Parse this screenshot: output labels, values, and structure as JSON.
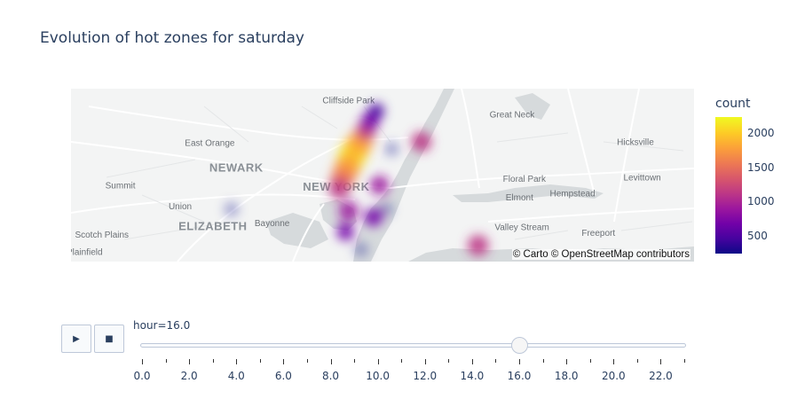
{
  "title": "Evolution of hot zones for saturday",
  "map": {
    "attribution": "© Carto © OpenStreetMap contributors",
    "places": [
      {
        "name": "Cliffside Park",
        "kind": "small",
        "lon": -73.99,
        "lat": 40.822
      },
      {
        "name": "Great Neck",
        "kind": "small",
        "lon": -73.725,
        "lat": 40.804
      },
      {
        "name": "East Orange",
        "kind": "small",
        "lon": -74.215,
        "lat": 40.769
      },
      {
        "name": "Hicksville",
        "kind": "small",
        "lon": -73.525,
        "lat": 40.77
      },
      {
        "name": "NEWARK",
        "kind": "city",
        "lon": -74.172,
        "lat": 40.737
      },
      {
        "name": "Summit",
        "kind": "small",
        "lon": -74.36,
        "lat": 40.716
      },
      {
        "name": "NEW YORK",
        "kind": "city",
        "lon": -74.01,
        "lat": 40.713
      },
      {
        "name": "Floral Park",
        "kind": "small",
        "lon": -73.705,
        "lat": 40.724
      },
      {
        "name": "Levittown",
        "kind": "small",
        "lon": -73.514,
        "lat": 40.726
      },
      {
        "name": "Elmont",
        "kind": "small",
        "lon": -73.713,
        "lat": 40.701
      },
      {
        "name": "Hempstead",
        "kind": "small",
        "lon": -73.627,
        "lat": 40.706
      },
      {
        "name": "Union",
        "kind": "small",
        "lon": -74.263,
        "lat": 40.69
      },
      {
        "name": "ELIZABETH",
        "kind": "city",
        "lon": -74.21,
        "lat": 40.664
      },
      {
        "name": "Bayonne",
        "kind": "small",
        "lon": -74.114,
        "lat": 40.669
      },
      {
        "name": "Valley Stream",
        "kind": "small",
        "lon": -73.709,
        "lat": 40.664
      },
      {
        "name": "Freeport",
        "kind": "small",
        "lon": -73.585,
        "lat": 40.657
      },
      {
        "name": "Scotch Plains",
        "kind": "small",
        "lon": -74.39,
        "lat": 40.655
      },
      {
        "name": "Plainfield",
        "kind": "small",
        "lon": -74.418,
        "lat": 40.633
      }
    ]
  },
  "colorbar": {
    "title": "count",
    "ticks": [
      500,
      1000,
      1500,
      2000
    ],
    "range": [
      250,
      2250
    ],
    "colors": [
      "#0d0887",
      "#46039f",
      "#7201a8",
      "#9c179e",
      "#bd3786",
      "#d8576b",
      "#ed7953",
      "#fb9f3a",
      "#fdca26",
      "#f0f921"
    ]
  },
  "animation": {
    "play_icon": "play-icon",
    "stop_icon": "stop-icon",
    "current_label": "hour=16.0",
    "current_value": 16,
    "min": 0,
    "max": 23,
    "major_ticks": [
      "0.0",
      "2.0",
      "4.0",
      "6.0",
      "8.0",
      "10.0",
      "12.0",
      "14.0",
      "16.0",
      "18.0",
      "20.0",
      "22.0"
    ]
  },
  "chart_data": {
    "type": "heatmap",
    "title": "Evolution of hot zones for saturday",
    "frame": "hour=16.0",
    "color_scale": "Plasma",
    "color_range": [
      250,
      2250
    ],
    "points": [
      {
        "lon": -73.985,
        "lat": 40.755,
        "count": 2200
      },
      {
        "lon": -73.978,
        "lat": 40.765,
        "count": 2000
      },
      {
        "lon": -73.992,
        "lat": 40.742,
        "count": 1900
      },
      {
        "lon": -73.97,
        "lat": 40.775,
        "count": 1700
      },
      {
        "lon": -74.0,
        "lat": 40.728,
        "count": 1600
      },
      {
        "lon": -74.005,
        "lat": 40.716,
        "count": 1200
      },
      {
        "lon": -73.962,
        "lat": 40.788,
        "count": 1100
      },
      {
        "lon": -73.955,
        "lat": 40.8,
        "count": 800
      },
      {
        "lon": -73.945,
        "lat": 40.812,
        "count": 500
      },
      {
        "lon": -73.94,
        "lat": 40.72,
        "count": 900
      },
      {
        "lon": -73.99,
        "lat": 40.688,
        "count": 1000
      },
      {
        "lon": -73.95,
        "lat": 40.68,
        "count": 800
      },
      {
        "lon": -73.995,
        "lat": 40.662,
        "count": 700
      },
      {
        "lon": -73.872,
        "lat": 40.774,
        "count": 1100
      },
      {
        "lon": -73.78,
        "lat": 40.645,
        "count": 1200
      },
      {
        "lon": -74.18,
        "lat": 40.69,
        "count": 300
      },
      {
        "lon": -73.92,
        "lat": 40.765,
        "count": 300
      },
      {
        "lon": -73.93,
        "lat": 40.69,
        "count": 300
      },
      {
        "lon": -73.97,
        "lat": 40.64,
        "count": 300
      }
    ]
  }
}
